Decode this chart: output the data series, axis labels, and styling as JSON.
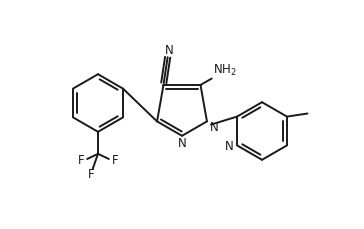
{
  "bg_color": "#ffffff",
  "line_color": "#1a1a1a",
  "line_width": 1.4,
  "font_size": 8.5,
  "figsize": [
    3.64,
    2.29
  ],
  "dpi": 100,
  "xlim": [
    0,
    9.1
  ],
  "ylim": [
    0,
    5.725
  ]
}
